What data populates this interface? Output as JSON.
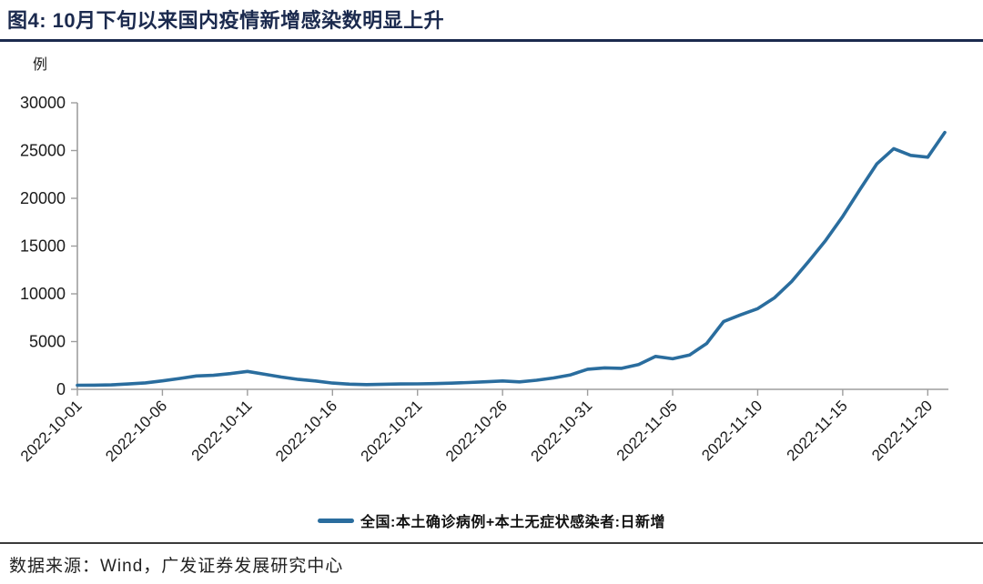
{
  "header": {
    "title": "图4:  10月下旬以来国内疫情新增感染数明显上升"
  },
  "chart_data": {
    "type": "line",
    "title": "10月下旬以来国内疫情新增感染数明显上升",
    "ylabel": "例",
    "xlabel": "",
    "grid": false,
    "legend_position": "bottom",
    "ylim": [
      0,
      30000
    ],
    "yticks": [
      0,
      5000,
      10000,
      15000,
      20000,
      25000,
      30000
    ],
    "xtick_labels": [
      "2022-10-01",
      "2022-10-06",
      "2022-10-11",
      "2022-10-16",
      "2022-10-21",
      "2022-10-26",
      "2022-10-31",
      "2022-11-05",
      "2022-11-10",
      "2022-11-15",
      "2022-11-20"
    ],
    "x": [
      "2022-10-01",
      "2022-10-02",
      "2022-10-03",
      "2022-10-04",
      "2022-10-05",
      "2022-10-06",
      "2022-10-07",
      "2022-10-08",
      "2022-10-09",
      "2022-10-10",
      "2022-10-11",
      "2022-10-12",
      "2022-10-13",
      "2022-10-14",
      "2022-10-15",
      "2022-10-16",
      "2022-10-17",
      "2022-10-18",
      "2022-10-19",
      "2022-10-20",
      "2022-10-21",
      "2022-10-22",
      "2022-10-23",
      "2022-10-24",
      "2022-10-25",
      "2022-10-26",
      "2022-10-27",
      "2022-10-28",
      "2022-10-29",
      "2022-10-30",
      "2022-10-31",
      "2022-11-01",
      "2022-11-02",
      "2022-11-03",
      "2022-11-04",
      "2022-11-05",
      "2022-11-06",
      "2022-11-07",
      "2022-11-08",
      "2022-11-09",
      "2022-11-10",
      "2022-11-11",
      "2022-11-12",
      "2022-11-13",
      "2022-11-14",
      "2022-11-15",
      "2022-11-16",
      "2022-11-17",
      "2022-11-18",
      "2022-11-19",
      "2022-11-20",
      "2022-11-21"
    ],
    "series": [
      {
        "name": "全国:本土确诊病例+本土无症状感染者:日新增",
        "color": "#2a6d9e",
        "values": [
          430,
          440,
          470,
          560,
          680,
          890,
          1130,
          1400,
          1470,
          1650,
          1880,
          1580,
          1290,
          1040,
          880,
          660,
          540,
          500,
          530,
          560,
          570,
          600,
          650,
          710,
          790,
          880,
          780,
          950,
          1190,
          1510,
          2100,
          2250,
          2200,
          2600,
          3450,
          3200,
          3600,
          4800,
          7100,
          7800,
          8450,
          9600,
          11300,
          13400,
          15600,
          18100,
          20900,
          23600,
          25200,
          24500,
          24300,
          26900
        ]
      }
    ]
  },
  "footer": {
    "source": "数据来源：Wind，广发证券发展研究中心"
  },
  "colors": {
    "line": "#2a6d9e",
    "title": "#1b2a4e",
    "axis": "#9e9e9e",
    "text": "#1a1a1a"
  }
}
